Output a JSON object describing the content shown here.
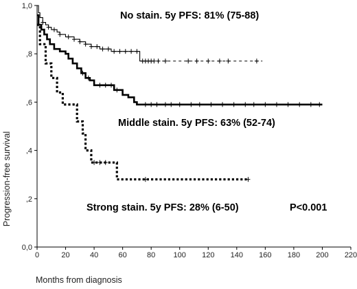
{
  "chart_data": {
    "type": "line",
    "subtype": "kaplan-meier",
    "title": "",
    "xlabel": "Months from diagnosis",
    "ylabel": "Progression-free survival",
    "xlim": [
      0,
      220
    ],
    "ylim": [
      0,
      1
    ],
    "x_ticks": [
      "0",
      "20",
      "40",
      "60",
      "80",
      "100",
      "120",
      "140",
      "160",
      "180",
      "200",
      "220"
    ],
    "y_ticks": [
      "0,0",
      ",2",
      ",4",
      ",6",
      ",8",
      "1,0"
    ],
    "grid": false,
    "legend": "none",
    "series": [
      {
        "line_style": "thin-dashed",
        "color": "#000000",
        "steps": [
          [
            0,
            1.0
          ],
          [
            1,
            0.97
          ],
          [
            2,
            0.95
          ],
          [
            4,
            0.93
          ],
          [
            6,
            0.92
          ],
          [
            8,
            0.91
          ],
          [
            10,
            0.9
          ],
          [
            14,
            0.89
          ],
          [
            16,
            0.88
          ],
          [
            20,
            0.87
          ],
          [
            26,
            0.86
          ],
          [
            30,
            0.85
          ],
          [
            34,
            0.84
          ],
          [
            38,
            0.83
          ],
          [
            44,
            0.82
          ],
          [
            52,
            0.81
          ],
          [
            68,
            0.81
          ],
          [
            72,
            0.77
          ],
          [
            158,
            0.77
          ]
        ],
        "solid_until": 80,
        "censored": [
          4,
          8,
          12,
          16,
          22,
          26,
          30,
          34,
          38,
          42,
          46,
          50,
          54,
          58,
          62,
          66,
          70,
          74,
          76,
          78,
          80,
          82,
          85,
          90,
          106,
          112,
          120,
          128,
          134,
          154
        ]
      },
      {
        "line_style": "thick-solid",
        "color": "#000000",
        "steps": [
          [
            0,
            0.96
          ],
          [
            1,
            0.92
          ],
          [
            3,
            0.9
          ],
          [
            5,
            0.88
          ],
          [
            7,
            0.86
          ],
          [
            9,
            0.84
          ],
          [
            12,
            0.82
          ],
          [
            16,
            0.81
          ],
          [
            20,
            0.8
          ],
          [
            22,
            0.78
          ],
          [
            25,
            0.76
          ],
          [
            28,
            0.74
          ],
          [
            31,
            0.72
          ],
          [
            34,
            0.7
          ],
          [
            37,
            0.69
          ],
          [
            40,
            0.67
          ],
          [
            50,
            0.67
          ],
          [
            54,
            0.65
          ],
          [
            60,
            0.63
          ],
          [
            64,
            0.62
          ],
          [
            68,
            0.6
          ],
          [
            70,
            0.59
          ],
          [
            200,
            0.59
          ]
        ],
        "censored": [
          32,
          36,
          44,
          48,
          52,
          56,
          76,
          80,
          84,
          90,
          94,
          100,
          108,
          114,
          122,
          130,
          138,
          146,
          152,
          160,
          168,
          176,
          184,
          192,
          198
        ]
      },
      {
        "line_style": "thick-dotted",
        "color": "#000000",
        "steps": [
          [
            0,
            0.92
          ],
          [
            2,
            0.84
          ],
          [
            6,
            0.76
          ],
          [
            10,
            0.7
          ],
          [
            14,
            0.64
          ],
          [
            18,
            0.59
          ],
          [
            28,
            0.52
          ],
          [
            32,
            0.47
          ],
          [
            34,
            0.4
          ],
          [
            38,
            0.35
          ],
          [
            52,
            0.35
          ],
          [
            56,
            0.28
          ],
          [
            148,
            0.28
          ]
        ],
        "censored": [
          40,
          44,
          48,
          76,
          148
        ]
      }
    ],
    "annotations": [
      "No stain. 5y PFS: 81% (75-88)",
      "Middle stain. 5y PFS: 63% (52-74)",
      "Strong stain. 5y PFS: 28% (6-50)",
      "P<0.001"
    ]
  }
}
